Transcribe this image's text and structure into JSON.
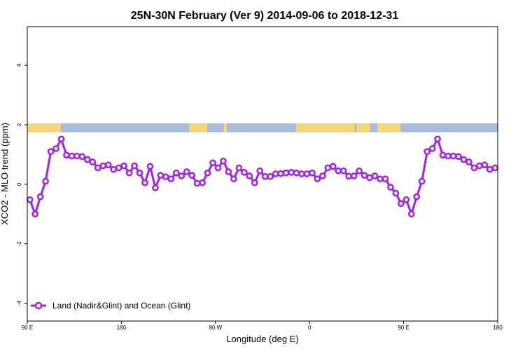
{
  "chart_data": {
    "type": "line",
    "title": "25N-30N February (Ver 9)   2014-09-06 to 2018-12-31",
    "xlabel": "Longitude (deg E)",
    "ylabel": "XCO2 - MLO trend (ppm)",
    "xlim": [
      90,
      540
    ],
    "ylim": [
      -4.6,
      5.3
    ],
    "x_ticks": [
      {
        "value": 90,
        "label": "90 E"
      },
      {
        "value": 180,
        "label": "180"
      },
      {
        "value": 270,
        "label": "90 W"
      },
      {
        "value": 360,
        "label": "0"
      },
      {
        "value": 450,
        "label": "90 E"
      },
      {
        "value": 540,
        "label": "180"
      }
    ],
    "y_ticks": [
      {
        "value": -4,
        "label": "-4"
      },
      {
        "value": -2,
        "label": "-2"
      },
      {
        "value": 0,
        "label": "0"
      },
      {
        "value": 2,
        "label": "2"
      },
      {
        "value": 4,
        "label": "4"
      }
    ],
    "grid": false,
    "legend": {
      "position": "bottom-left"
    },
    "land_ocean_band": {
      "y_range": [
        1.75,
        2.05
      ],
      "ocean_color": "#a6bddb",
      "land_color": "#f5d67a",
      "land_spans": [
        [
          90,
          122
        ],
        [
          245,
          262
        ],
        [
          278,
          281
        ],
        [
          347,
          403
        ],
        [
          405,
          418
        ],
        [
          425,
          447
        ]
      ]
    },
    "series": [
      {
        "name": "Land (Nadir&Glint) and Ocean (Glint)",
        "color": "#a020f0",
        "x": [
          92.5,
          97.5,
          102.5,
          107.5,
          112.5,
          117.5,
          122.5,
          127.5,
          132.5,
          137.5,
          142.5,
          147.5,
          152.5,
          157.5,
          162.5,
          167.5,
          172.5,
          177.5,
          182.5,
          187.5,
          192.5,
          197.5,
          202.5,
          207.5,
          212.5,
          217.5,
          222.5,
          227.5,
          232.5,
          237.5,
          242.5,
          247.5,
          252.5,
          257.5,
          262.5,
          267.5,
          272.5,
          277.5,
          282.5,
          287.5,
          292.5,
          297.5,
          302.5,
          307.5,
          312.5,
          317.5,
          322.5,
          327.5,
          332.5,
          337.5,
          342.5,
          347.5,
          352.5,
          357.5,
          362.5,
          367.5,
          372.5,
          377.5,
          382.5,
          387.5,
          392.5,
          397.5,
          402.5,
          407.5,
          412.5,
          417.5,
          422.5,
          427.5,
          432.5,
          437.5,
          442.5,
          447.5,
          452.5,
          457.5,
          462.5,
          467.5,
          472.5,
          477.5,
          482.5,
          487.5,
          492.5,
          497.5,
          502.5,
          507.5,
          512.5,
          517.5,
          522.5,
          527.5,
          532.5,
          537.5
        ],
        "values": [
          -0.52,
          -1.0,
          -0.42,
          0.1,
          1.1,
          1.2,
          1.52,
          0.98,
          0.95,
          0.95,
          0.93,
          0.83,
          0.75,
          0.55,
          0.62,
          0.65,
          0.5,
          0.55,
          0.62,
          0.38,
          0.62,
          0.38,
          0.05,
          0.6,
          -0.12,
          0.3,
          0.25,
          0.18,
          0.38,
          0.28,
          0.42,
          0.3,
          0.03,
          0.05,
          0.38,
          0.72,
          0.55,
          0.78,
          0.42,
          0.18,
          0.55,
          0.4,
          0.28,
          0.05,
          0.45,
          0.26,
          0.26,
          0.35,
          0.36,
          0.38,
          0.4,
          0.38,
          0.35,
          0.35,
          0.38,
          0.18,
          0.28,
          0.55,
          0.6,
          0.45,
          0.45,
          0.27,
          0.28,
          0.45,
          0.3,
          0.22,
          0.28,
          0.18,
          0.18,
          -0.1,
          -0.3,
          -0.65,
          -0.52,
          -1.0,
          -0.42,
          0.1,
          1.1,
          1.2,
          1.52,
          0.98,
          0.95,
          0.95,
          0.93,
          0.83,
          0.75,
          0.55,
          0.62,
          0.65,
          0.5,
          0.55
        ]
      }
    ]
  }
}
